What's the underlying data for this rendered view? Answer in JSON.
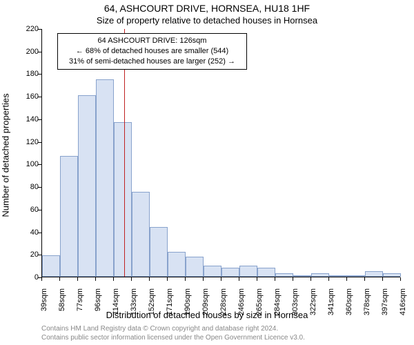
{
  "header": {
    "address": "64, ASHCOURT DRIVE, HORNSEA, HU18 1HF",
    "subtitle": "Size of property relative to detached houses in Hornsea"
  },
  "axes": {
    "ylabel": "Number of detached properties",
    "xlabel": "Distribution of detached houses by size in Hornsea"
  },
  "annotation": {
    "line1": "64 ASHCOURT DRIVE: 126sqm",
    "line2": "← 68% of detached houses are smaller (544)",
    "line3": "31% of semi-detached houses are larger (252) →"
  },
  "credits": {
    "line1": "Contains HM Land Registry data © Crown copyright and database right 2024.",
    "line2": "Contains public sector information licensed under the Open Government Licence v3.0."
  },
  "chart": {
    "type": "histogram",
    "background_color": "#ffffff",
    "bar_fill": "#d8e2f3",
    "bar_border": "#88a2cc",
    "reference_line_color": "#c02020",
    "reference_value_sqm": 126,
    "x_start": 39,
    "x_step": 19,
    "x_unit": "sqm",
    "x_labels": [
      "39sqm",
      "58sqm",
      "77sqm",
      "96sqm",
      "114sqm",
      "133sqm",
      "152sqm",
      "171sqm",
      "190sqm",
      "209sqm",
      "228sqm",
      "246sqm",
      "265sqm",
      "284sqm",
      "303sqm",
      "322sqm",
      "341sqm",
      "360sqm",
      "378sqm",
      "397sqm",
      "416sqm"
    ],
    "ylim": [
      0,
      220
    ],
    "ytick_step": 20,
    "yticks": [
      0,
      20,
      40,
      60,
      80,
      100,
      120,
      140,
      160,
      180,
      200,
      220
    ],
    "values": [
      19,
      107,
      161,
      175,
      137,
      75,
      44,
      22,
      18,
      10,
      8,
      10,
      8,
      3,
      0,
      3,
      0,
      0,
      5,
      3
    ],
    "title_fontsize": 14,
    "subtitle_fontsize": 13,
    "axis_label_fontsize": 13,
    "tick_fontsize": 11,
    "annotation_fontsize": 11,
    "credits_fontsize": 10,
    "credits_color": "#888888"
  }
}
